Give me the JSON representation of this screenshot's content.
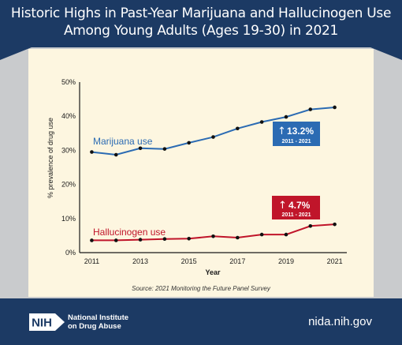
{
  "header": {
    "title_line1": "Historic Highs in Past-Year Marijuana and Hallucinogen Use",
    "title_line2": "Among Young Adults (Ages 19-30) in 2021"
  },
  "chart_data": {
    "type": "line",
    "title": "Historic Highs in Past-Year Marijuana and Hallucinogen Use Among Young Adults (Ages 19-30) in 2021",
    "xlabel": "Year",
    "ylabel": "% prevalence of drug use",
    "x": [
      2011,
      2012,
      2013,
      2014,
      2015,
      2016,
      2017,
      2018,
      2019,
      2020,
      2021
    ],
    "xticks": [
      "2011",
      "2013",
      "2015",
      "2017",
      "2019",
      "2021"
    ],
    "yticks": [
      "0%",
      "10%",
      "20%",
      "30%",
      "40%",
      "50%"
    ],
    "ylim": [
      0,
      50
    ],
    "grid": false,
    "series": [
      {
        "name": "Marijuana use",
        "color": "#2b6bb3",
        "values": [
          29.5,
          28.7,
          30.6,
          30.4,
          32.2,
          33.9,
          36.4,
          38.3,
          39.8,
          42.0,
          42.6
        ],
        "change": {
          "value": "13.2%",
          "range": "2011 - 2021",
          "color": "#2b6bb3"
        }
      },
      {
        "name": "Hallucinogen use",
        "color": "#c0152a",
        "values": [
          3.6,
          3.6,
          3.8,
          4.0,
          4.1,
          4.8,
          4.4,
          5.3,
          5.3,
          7.8,
          8.3
        ],
        "change": {
          "value": "4.7%",
          "range": "2011 - 2021",
          "color": "#c0152a"
        }
      }
    ],
    "source": "Source: 2021 Monitoring the Future Panel Survey"
  },
  "footer": {
    "logo_text": "NIH",
    "institute_line1": "National Institute",
    "institute_line2": "on Drug Abuse",
    "site": "nida.nih.gov"
  }
}
